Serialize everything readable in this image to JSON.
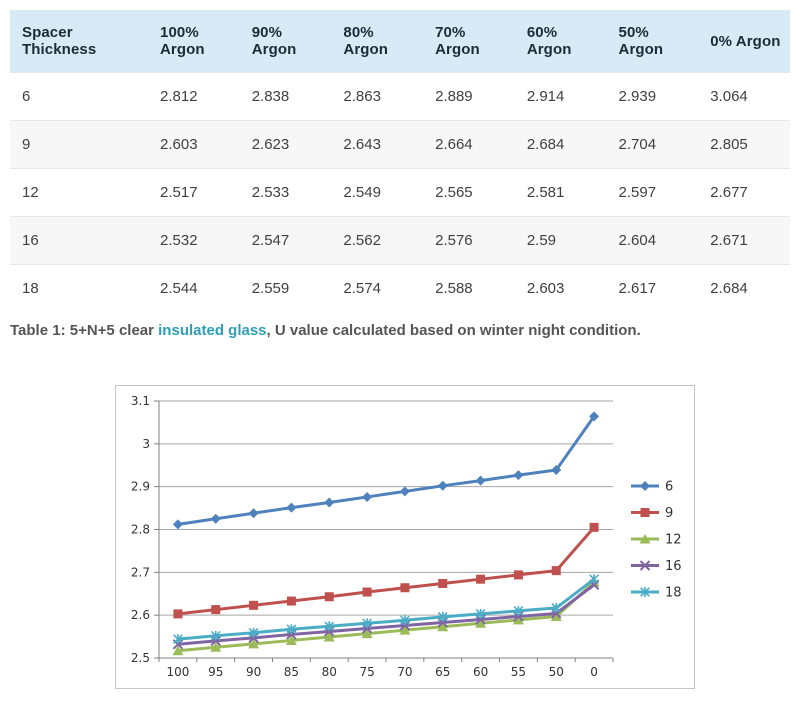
{
  "table": {
    "columns": [
      "Spacer Thickness",
      "100% Argon",
      "90% Argon",
      "80% Argon",
      "70% Argon",
      "60% Argon",
      "50% Argon",
      "0% Argon"
    ],
    "rows": [
      {
        "spacer": "6",
        "values": [
          "2.812",
          "2.838",
          "2.863",
          "2.889",
          "2.914",
          "2.939",
          "3.064"
        ]
      },
      {
        "spacer": "9",
        "values": [
          "2.603",
          "2.623",
          "2.643",
          "2.664",
          "2.684",
          "2.704",
          "2.805"
        ]
      },
      {
        "spacer": "12",
        "values": [
          "2.517",
          "2.533",
          "2.549",
          "2.565",
          "2.581",
          "2.597",
          "2.677"
        ]
      },
      {
        "spacer": "16",
        "values": [
          "2.532",
          "2.547",
          "2.562",
          "2.576",
          "2.59",
          "2.604",
          "2.671"
        ]
      },
      {
        "spacer": "18",
        "values": [
          "2.544",
          "2.559",
          "2.574",
          "2.588",
          "2.603",
          "2.617",
          "2.684"
        ]
      }
    ]
  },
  "caption": {
    "prefix": "Table 1: 5+N+5 clear ",
    "link": "insulated glass",
    "suffix": ", U value calculated based on winter night condition."
  },
  "chart_data": {
    "type": "line",
    "x": [
      "100",
      "95",
      "90",
      "85",
      "80",
      "75",
      "70",
      "65",
      "60",
      "55",
      "50",
      "0"
    ],
    "series": [
      {
        "name": "6",
        "marker": "diamond",
        "color": "#4F81BD",
        "values": [
          2.812,
          2.825,
          2.838,
          2.851,
          2.863,
          2.876,
          2.889,
          2.902,
          2.914,
          2.927,
          2.939,
          3.064
        ]
      },
      {
        "name": "9",
        "marker": "square",
        "color": "#C0504D",
        "values": [
          2.603,
          2.613,
          2.623,
          2.633,
          2.643,
          2.654,
          2.664,
          2.674,
          2.684,
          2.694,
          2.704,
          2.805
        ]
      },
      {
        "name": "12",
        "marker": "triangle",
        "color": "#9BBB59",
        "values": [
          2.517,
          2.525,
          2.533,
          2.541,
          2.549,
          2.557,
          2.565,
          2.573,
          2.581,
          2.589,
          2.597,
          2.677
        ]
      },
      {
        "name": "16",
        "marker": "x",
        "color": "#8064A2",
        "values": [
          2.532,
          2.54,
          2.547,
          2.555,
          2.562,
          2.569,
          2.576,
          2.583,
          2.59,
          2.597,
          2.604,
          2.671
        ]
      },
      {
        "name": "18",
        "marker": "asterisk",
        "color": "#4BACC6",
        "values": [
          2.544,
          2.552,
          2.559,
          2.567,
          2.574,
          2.581,
          2.588,
          2.596,
          2.603,
          2.61,
          2.617,
          2.684
        ]
      }
    ],
    "ylim": [
      2.5,
      3.1
    ],
    "yticks": [
      2.5,
      2.6,
      2.7,
      2.8,
      2.9,
      3,
      3.1
    ],
    "grid": true,
    "legend_position": "right",
    "title": "",
    "xlabel": "",
    "ylabel": ""
  },
  "theme": {
    "header_bg": "#D8EAF5",
    "header_text": "#1C2B39",
    "row_alt_bg": "#F7F7F7",
    "row_border": "#E7E7E7",
    "cell_text": "#404040",
    "caption_text": "#555555",
    "link_color": "#2F9FB7",
    "chart_border": "#C5C5C5",
    "grid_color": "#A6A6A6",
    "axis_color": "#808080"
  }
}
